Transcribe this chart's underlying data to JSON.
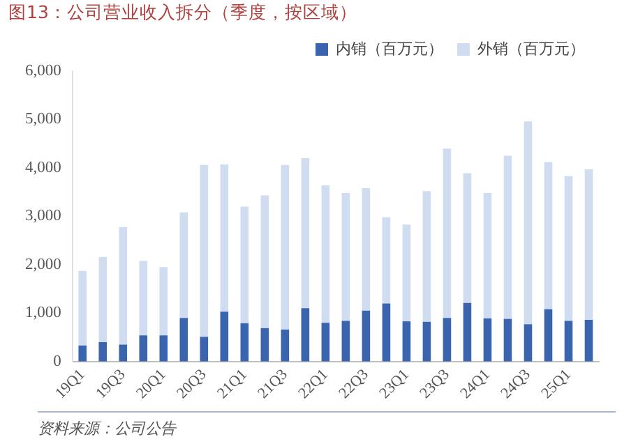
{
  "chart_data": {
    "type": "bar",
    "title": "图13：公司营业收入拆分（季度，按区域）",
    "stacked": true,
    "legend": "top",
    "grid": false,
    "categories": [
      "19Q1",
      null,
      "19Q3",
      null,
      "20Q1",
      null,
      "20Q3",
      null,
      "21Q1",
      null,
      "21Q3",
      null,
      "22Q1",
      null,
      "22Q3",
      null,
      "23Q1",
      null,
      "23Q3",
      null,
      "24Q1",
      null,
      "24Q3",
      null,
      "25Q1",
      null
    ],
    "series": [
      {
        "name": "内销（百万元）",
        "color": "#3a64ad",
        "values": [
          330,
          400,
          350,
          540,
          540,
          900,
          510,
          1030,
          790,
          690,
          660,
          1100,
          800,
          840,
          1050,
          1200,
          830,
          820,
          900,
          1210,
          890,
          880,
          770,
          1080,
          840,
          860
        ]
      },
      {
        "name": "外销（百万元）",
        "color": "#d0ddf1",
        "values": [
          1540,
          1760,
          2430,
          1540,
          1410,
          2180,
          3550,
          3040,
          2410,
          2740,
          3400,
          3100,
          2840,
          2640,
          2530,
          1780,
          2000,
          2700,
          3500,
          2680,
          2590,
          3370,
          4190,
          3040,
          2990,
          3110
        ]
      }
    ],
    "ylim": [
      0,
      6000
    ],
    "yticks": [
      0,
      {
        "value": 1000,
        "label": "1,000"
      },
      {
        "value": 2000,
        "label": "2,000"
      },
      {
        "value": 3000,
        "label": "3,000"
      },
      {
        "value": 4000,
        "label": "4,000"
      },
      {
        "value": 5000,
        "label": "5,000"
      },
      {
        "value": 6000,
        "label": "6,000"
      }
    ],
    "annotations": [
      "资料来源：公司公告"
    ]
  }
}
